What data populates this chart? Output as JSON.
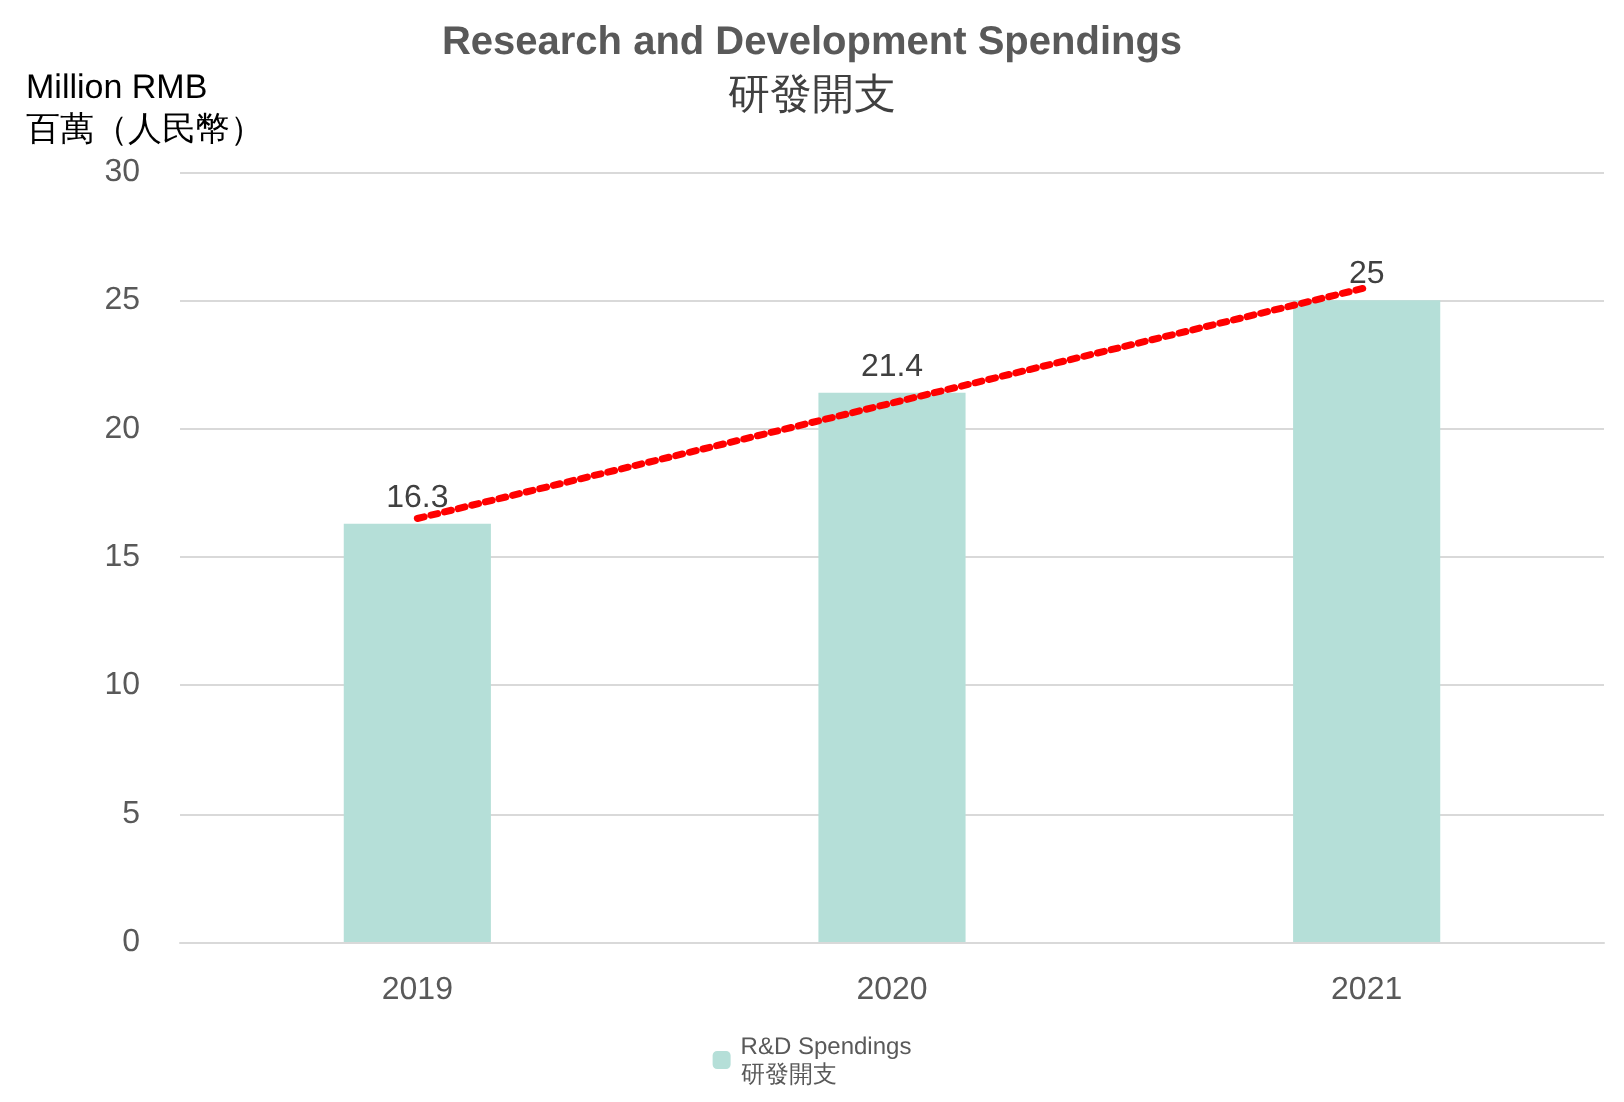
{
  "chart_data": {
    "type": "bar",
    "title": "Research and Development Spendings",
    "subtitle": "研發開支",
    "ylabel": "Million RMB\n百萬（人民幣）",
    "categories": [
      "2019",
      "2020",
      "2021"
    ],
    "series": [
      {
        "name": "R&D Spendings\n研發開支",
        "color": "#b5dfd8",
        "values": [
          16.3,
          21.4,
          25
        ],
        "value_labels": [
          "16.3",
          "21.4",
          "25"
        ]
      },
      {
        "type": "line",
        "color": "#ff0000",
        "line_style": "dotted",
        "values": [
          16.5,
          21,
          25.5
        ]
      }
    ],
    "ylim": [
      0,
      30
    ],
    "yticks": [
      0,
      5,
      10,
      15,
      20,
      25,
      30
    ],
    "grid": "y",
    "legend": "bottom",
    "marker": "none"
  }
}
